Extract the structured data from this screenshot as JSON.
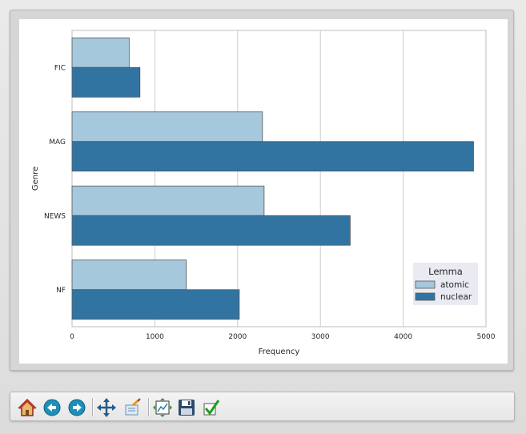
{
  "chart_data": {
    "type": "bar",
    "orientation": "horizontal",
    "categories": [
      "FIC",
      "MAG",
      "NEWS",
      "NF"
    ],
    "series": [
      {
        "name": "atomic",
        "color": "#a6c8dd",
        "values": [
          690,
          2300,
          2320,
          1380
        ]
      },
      {
        "name": "nuclear",
        "color": "#3274a1",
        "values": [
          820,
          4850,
          3360,
          2020
        ]
      }
    ],
    "xlabel": "Frequency",
    "ylabel": "Genre",
    "xlim": [
      0,
      5000
    ],
    "xticks": [
      "0",
      "1000",
      "2000",
      "3000",
      "4000",
      "5000"
    ],
    "grid": "vertical",
    "legend": {
      "title": "Lemma",
      "placement": "lower-right"
    }
  },
  "toolbar": {
    "buttons": [
      {
        "name": "home-button",
        "icon": "home-icon"
      },
      {
        "name": "back-button",
        "icon": "left-arrow-icon"
      },
      {
        "name": "forward-button",
        "icon": "right-arrow-icon"
      },
      {
        "name": "pan-button",
        "icon": "move-icon"
      },
      {
        "name": "zoom-button",
        "icon": "zoom-rect-icon"
      },
      {
        "name": "subplots-button",
        "icon": "subplots-icon"
      },
      {
        "name": "save-button",
        "icon": "floppy-disk-icon"
      },
      {
        "name": "edit-button",
        "icon": "checkmark-icon"
      }
    ]
  }
}
